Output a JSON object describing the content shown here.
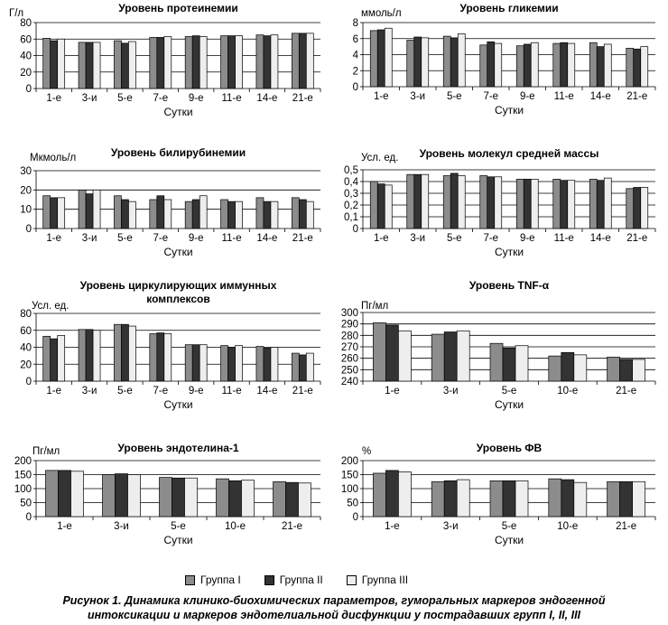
{
  "legend": [
    "Группа I",
    "Группа II",
    "Группа III"
  ],
  "colors": [
    "#8c8c8c",
    "#333333",
    "#eeeeee"
  ],
  "caption": {
    "line1": "Рисунок 1. Динамика клинико-биохимических параметров, гуморальных маркеров эндогенной",
    "line2": "интоксикации и маркеров эндотелиальной дисфункции у пострадавших групп I, II, III"
  },
  "chart_data": [
    {
      "type": "bar",
      "title": [
        "Уровень протеинемии"
      ],
      "ylabel": "Г/л",
      "xlabel": "Сутки",
      "ylim": [
        0,
        80
      ],
      "yticks": [
        0,
        20,
        40,
        60,
        80
      ],
      "ytick_labels": [
        "0",
        "20",
        "40",
        "60",
        "80"
      ],
      "categories": [
        "1-е",
        "3-и",
        "5-е",
        "7-е",
        "9-е",
        "11-е",
        "14-е",
        "21-е"
      ],
      "series": [
        {
          "name": "Группа I",
          "values": [
            61,
            56,
            58,
            62,
            63,
            64,
            65,
            67
          ]
        },
        {
          "name": "Группа II",
          "values": [
            58,
            56,
            55,
            62,
            64,
            64,
            64,
            67
          ]
        },
        {
          "name": "Группа III",
          "values": [
            60,
            56,
            57,
            63,
            63,
            64,
            65,
            67
          ]
        }
      ]
    },
    {
      "type": "bar",
      "title": [
        "Уровень гликемии"
      ],
      "ylabel": "ммоль/л",
      "xlabel": "Сутки",
      "ylim": [
        0,
        8
      ],
      "yticks": [
        0,
        2,
        4,
        6,
        8
      ],
      "ytick_labels": [
        "0",
        "2",
        "4",
        "6",
        "8"
      ],
      "categories": [
        "1-е",
        "3-и",
        "5-е",
        "7-е",
        "9-е",
        "11-е",
        "14-е",
        "21-е"
      ],
      "series": [
        {
          "name": "Группа I",
          "values": [
            7.0,
            5.8,
            6.3,
            5.2,
            5.1,
            5.4,
            5.5,
            4.8
          ]
        },
        {
          "name": "Группа II",
          "values": [
            7.1,
            6.2,
            6.1,
            5.6,
            5.3,
            5.5,
            5.0,
            4.7
          ]
        },
        {
          "name": "Группа III",
          "values": [
            7.3,
            6.1,
            6.6,
            5.4,
            5.5,
            5.4,
            5.3,
            5.0
          ]
        }
      ]
    },
    {
      "type": "bar",
      "title": [
        "Уровень билирубинемии"
      ],
      "ylabel": "Мкмоль/л",
      "xlabel": "Сутки",
      "ylim": [
        0,
        30
      ],
      "yticks": [
        0,
        10,
        20,
        30
      ],
      "ytick_labels": [
        "0",
        "10",
        "20",
        "30"
      ],
      "categories": [
        "1-е",
        "3-и",
        "5-е",
        "7-е",
        "9-е",
        "11-е",
        "14-е",
        "21-е"
      ],
      "series": [
        {
          "name": "Группа I",
          "values": [
            17,
            20,
            17,
            15,
            14,
            15,
            16,
            16
          ]
        },
        {
          "name": "Группа II",
          "values": [
            16,
            18,
            15,
            17,
            15,
            14,
            14,
            15
          ]
        },
        {
          "name": "Группа III",
          "values": [
            16,
            20,
            14,
            15,
            17,
            14,
            14,
            14
          ]
        }
      ]
    },
    {
      "type": "bar",
      "title": [
        "Уровень молекул средней массы"
      ],
      "ylabel": "Усл. ед.",
      "xlabel": "Сутки",
      "ylim": [
        0,
        0.5
      ],
      "yticks": [
        0,
        0.1,
        0.2,
        0.3,
        0.4,
        0.5
      ],
      "ytick_labels": [
        "0",
        "0,1",
        "0,2",
        "0,3",
        "0,4",
        "0,5"
      ],
      "categories": [
        "1-е",
        "3-и",
        "5-е",
        "7-е",
        "9-е",
        "11-е",
        "14-е",
        "21-е"
      ],
      "series": [
        {
          "name": "Группа I",
          "values": [
            0.4,
            0.46,
            0.45,
            0.45,
            0.42,
            0.42,
            0.42,
            0.34
          ]
        },
        {
          "name": "Группа II",
          "values": [
            0.38,
            0.46,
            0.47,
            0.44,
            0.42,
            0.41,
            0.41,
            0.35
          ]
        },
        {
          "name": "Группа III",
          "values": [
            0.37,
            0.46,
            0.45,
            0.44,
            0.42,
            0.41,
            0.43,
            0.35
          ]
        }
      ]
    },
    {
      "type": "bar",
      "title": [
        "Уровень циркулирующих иммунных",
        "комплексов"
      ],
      "ylabel": "Усл. ед.",
      "xlabel": "Сутки",
      "ylim": [
        0,
        80
      ],
      "yticks": [
        0,
        20,
        40,
        60,
        80
      ],
      "ytick_labels": [
        "0",
        "20",
        "40",
        "60",
        "80"
      ],
      "categories": [
        "1-е",
        "3-и",
        "5-е",
        "7-е",
        "9-е",
        "11-е",
        "14-е",
        "21-е"
      ],
      "series": [
        {
          "name": "Группа I",
          "values": [
            53,
            61,
            67,
            56,
            43,
            42,
            41,
            33
          ]
        },
        {
          "name": "Группа II",
          "values": [
            50,
            61,
            67,
            57,
            43,
            40,
            39,
            31
          ]
        },
        {
          "name": "Группа III",
          "values": [
            54,
            60,
            65,
            56,
            43,
            42,
            40,
            33
          ]
        }
      ]
    },
    {
      "type": "bar",
      "title": [
        "Уровень TNF-α"
      ],
      "ylabel": "Пг/мл",
      "xlabel": "Сутки",
      "ylim": [
        240,
        300
      ],
      "yticks": [
        240,
        250,
        260,
        270,
        280,
        290,
        300
      ],
      "ytick_labels": [
        "240",
        "250",
        "260",
        "270",
        "280",
        "290",
        "300"
      ],
      "categories": [
        "1-е",
        "3-и",
        "5-е",
        "10-е",
        "21-е"
      ],
      "series": [
        {
          "name": "Группа I",
          "values": [
            291,
            281,
            273,
            262,
            261
          ]
        },
        {
          "name": "Группа II",
          "values": [
            289,
            283,
            269,
            265,
            259
          ]
        },
        {
          "name": "Группа III",
          "values": [
            284,
            284,
            271,
            263,
            259
          ]
        }
      ]
    },
    {
      "type": "bar",
      "title": [
        "Уровень эндотелина-1"
      ],
      "ylabel": "Пг/мл",
      "xlabel": "Сутки",
      "ylim": [
        0,
        200
      ],
      "yticks": [
        0,
        50,
        100,
        150,
        200
      ],
      "ytick_labels": [
        "0",
        "50",
        "100",
        "150",
        "200"
      ],
      "categories": [
        "1-е",
        "3-и",
        "5-е",
        "10-е",
        "21-е"
      ],
      "series": [
        {
          "name": "Группа I",
          "values": [
            165,
            150,
            140,
            135,
            125
          ]
        },
        {
          "name": "Группа II",
          "values": [
            165,
            153,
            138,
            128,
            122
          ]
        },
        {
          "name": "Группа III",
          "values": [
            162,
            150,
            138,
            130,
            120
          ]
        }
      ]
    },
    {
      "type": "bar",
      "title": [
        "Уровень ФВ"
      ],
      "ylabel": "%",
      "xlabel": "Сутки",
      "ylim": [
        0,
        200
      ],
      "yticks": [
        0,
        50,
        100,
        150,
        200
      ],
      "ytick_labels": [
        "0",
        "50",
        "100",
        "150",
        "200"
      ],
      "categories": [
        "1-е",
        "3-и",
        "5-е",
        "10-е",
        "21-е"
      ],
      "series": [
        {
          "name": "Группа I",
          "values": [
            155,
            125,
            128,
            135,
            125
          ]
        },
        {
          "name": "Группа II",
          "values": [
            165,
            128,
            128,
            132,
            125
          ]
        },
        {
          "name": "Группа III",
          "values": [
            160,
            132,
            128,
            122,
            125
          ]
        }
      ]
    }
  ]
}
